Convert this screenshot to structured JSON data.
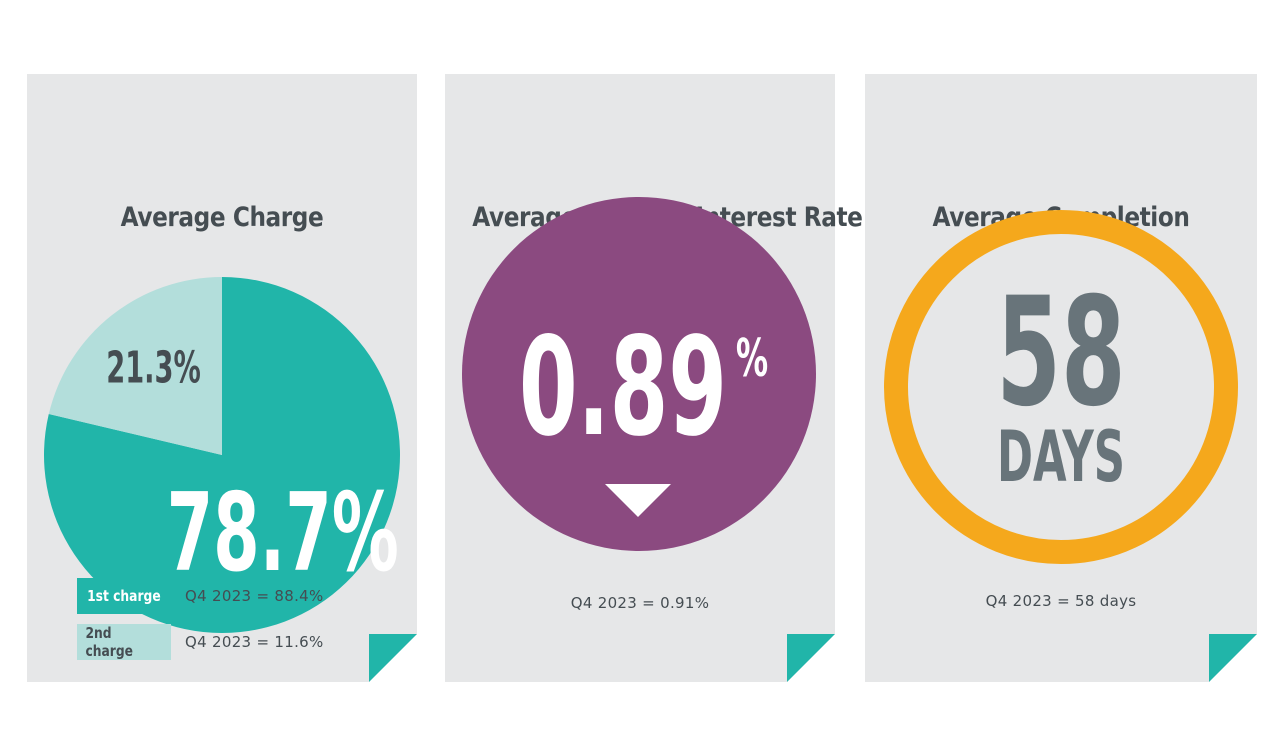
{
  "colors": {
    "card_bg": "#e6e7e8",
    "teal": "#21b5a9",
    "light_teal": "#b3dedb",
    "purple": "#8b4a80",
    "orange": "#f5a81c",
    "dark_text": "#454d52",
    "grey_number": "#68747a"
  },
  "cards": {
    "charge": {
      "title": "Average Charge",
      "first_label": "1st charge",
      "first_prev": "Q4 2023 = 88.4%",
      "second_label": "2nd charge",
      "second_prev": "Q4 2023 = 11.6%"
    },
    "rate": {
      "title": "Average Monthly Interest Rate",
      "value_main": "0.89",
      "value_unit": "%",
      "trend": "down-arrow-icon",
      "prev": "Q4 2023 = 0.91%"
    },
    "completion": {
      "title": "Average Completion",
      "value": "58",
      "unit": "DAYS",
      "prev": "Q4 2023 = 58 days"
    }
  },
  "chart_data": [
    {
      "type": "pie",
      "title": "Average Charge",
      "categories": [
        "1st charge",
        "2nd charge"
      ],
      "values": [
        78.7,
        21.3
      ],
      "labels": [
        "78.7%",
        "21.3%"
      ],
      "colors": [
        "#21b5a9",
        "#b3dedb"
      ]
    }
  ]
}
